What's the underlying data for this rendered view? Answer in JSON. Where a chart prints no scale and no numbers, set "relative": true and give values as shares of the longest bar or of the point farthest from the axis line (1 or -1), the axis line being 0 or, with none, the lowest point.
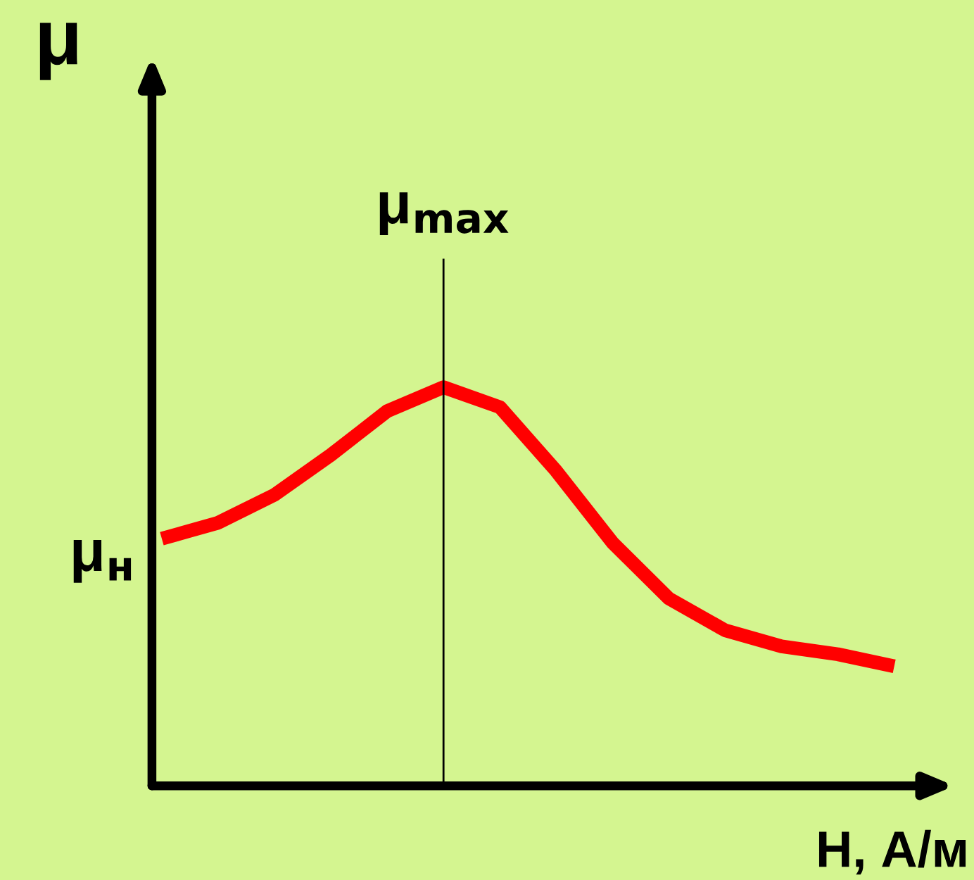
{
  "chart_data": {
    "type": "line",
    "relative": true,
    "xlabel": "H, А/м",
    "ylabel": "μ",
    "categories": [
      null,
      null,
      null,
      null,
      null,
      null,
      null,
      null,
      null,
      null,
      null,
      null,
      null,
      null
    ],
    "series": [
      {
        "color": "#ff0000",
        "values": [
          0.62,
          0.66,
          0.73,
          0.83,
          0.94,
          1.0,
          0.95,
          0.79,
          0.61,
          0.47,
          0.39,
          0.35,
          0.33,
          0.3
        ]
      }
    ],
    "annotations": [
      "μ$_{max}$",
      "μ$_{н}$"
    ],
    "marker": "none",
    "line_style": "solid"
  }
}
